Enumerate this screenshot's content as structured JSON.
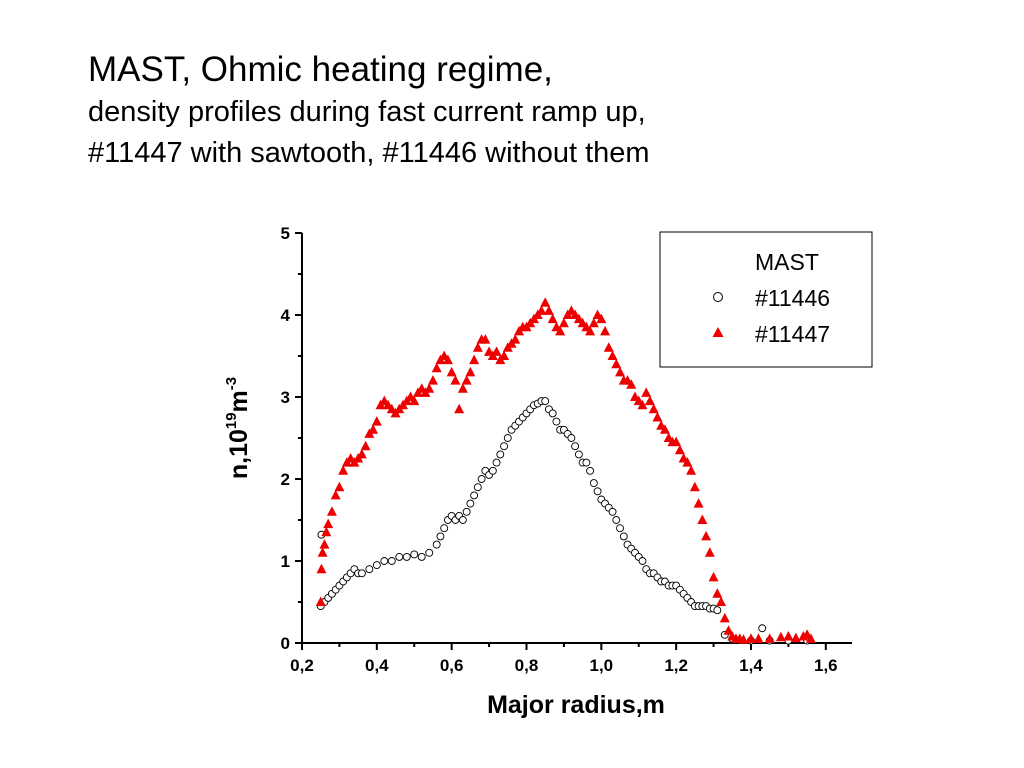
{
  "slide": {
    "title_line1": "MAST, Ohmic heating regime,",
    "title_line2": "density profiles during fast current ramp up,",
    "title_line3": "#11447 with sawtooth, #11446 without them"
  },
  "chart_data": {
    "type": "scatter",
    "xlabel": "Major radius,m",
    "ylabel": {
      "base": "n,10",
      "sup1": "19",
      "mid": "m",
      "sup2": "-3"
    },
    "xlim": [
      0.2,
      1.67
    ],
    "ylim": [
      0,
      5
    ],
    "xticks": [
      0.2,
      0.4,
      0.6,
      0.8,
      1.0,
      1.2,
      1.4,
      1.6
    ],
    "xtick_labels": [
      "0,2",
      "0,4",
      "0,6",
      "0,8",
      "1,0",
      "1,2",
      "1,4",
      "1,6"
    ],
    "yticks": [
      0,
      1,
      2,
      3,
      4,
      5
    ],
    "ytick_labels": [
      "0",
      "1",
      "2",
      "3",
      "4",
      "5"
    ],
    "grid": false,
    "legend": {
      "title": "MAST",
      "placement": "top-right"
    },
    "series": [
      {
        "name": "#11446",
        "marker": "open-circle",
        "color": "#000000",
        "points": [
          [
            0.25,
            0.45
          ],
          [
            0.252,
            1.32
          ],
          [
            0.26,
            0.5
          ],
          [
            0.27,
            0.55
          ],
          [
            0.28,
            0.6
          ],
          [
            0.29,
            0.65
          ],
          [
            0.3,
            0.7
          ],
          [
            0.31,
            0.75
          ],
          [
            0.32,
            0.8
          ],
          [
            0.33,
            0.85
          ],
          [
            0.34,
            0.9
          ],
          [
            0.35,
            0.85
          ],
          [
            0.36,
            0.85
          ],
          [
            0.38,
            0.9
          ],
          [
            0.4,
            0.95
          ],
          [
            0.42,
            1.0
          ],
          [
            0.44,
            1.0
          ],
          [
            0.46,
            1.05
          ],
          [
            0.48,
            1.05
          ],
          [
            0.5,
            1.08
          ],
          [
            0.52,
            1.05
          ],
          [
            0.54,
            1.1
          ],
          [
            0.56,
            1.2
          ],
          [
            0.57,
            1.3
          ],
          [
            0.58,
            1.4
          ],
          [
            0.59,
            1.5
          ],
          [
            0.6,
            1.55
          ],
          [
            0.61,
            1.5
          ],
          [
            0.62,
            1.55
          ],
          [
            0.63,
            1.5
          ],
          [
            0.64,
            1.6
          ],
          [
            0.65,
            1.7
          ],
          [
            0.66,
            1.8
          ],
          [
            0.67,
            1.9
          ],
          [
            0.68,
            2.0
          ],
          [
            0.69,
            2.1
          ],
          [
            0.7,
            2.05
          ],
          [
            0.71,
            2.1
          ],
          [
            0.72,
            2.2
          ],
          [
            0.73,
            2.3
          ],
          [
            0.74,
            2.4
          ],
          [
            0.75,
            2.5
          ],
          [
            0.76,
            2.6
          ],
          [
            0.77,
            2.65
          ],
          [
            0.78,
            2.7
          ],
          [
            0.79,
            2.75
          ],
          [
            0.8,
            2.8
          ],
          [
            0.81,
            2.85
          ],
          [
            0.82,
            2.9
          ],
          [
            0.83,
            2.92
          ],
          [
            0.84,
            2.95
          ],
          [
            0.85,
            2.95
          ],
          [
            0.86,
            2.85
          ],
          [
            0.87,
            2.8
          ],
          [
            0.88,
            2.7
          ],
          [
            0.89,
            2.6
          ],
          [
            0.9,
            2.6
          ],
          [
            0.91,
            2.55
          ],
          [
            0.92,
            2.5
          ],
          [
            0.93,
            2.4
          ],
          [
            0.94,
            2.3
          ],
          [
            0.95,
            2.2
          ],
          [
            0.96,
            2.2
          ],
          [
            0.97,
            2.1
          ],
          [
            0.98,
            1.95
          ],
          [
            0.99,
            1.85
          ],
          [
            1.0,
            1.75
          ],
          [
            1.01,
            1.7
          ],
          [
            1.02,
            1.65
          ],
          [
            1.03,
            1.6
          ],
          [
            1.04,
            1.5
          ],
          [
            1.05,
            1.4
          ],
          [
            1.06,
            1.3
          ],
          [
            1.07,
            1.2
          ],
          [
            1.08,
            1.15
          ],
          [
            1.09,
            1.1
          ],
          [
            1.1,
            1.05
          ],
          [
            1.11,
            1.0
          ],
          [
            1.12,
            0.9
          ],
          [
            1.13,
            0.85
          ],
          [
            1.14,
            0.85
          ],
          [
            1.15,
            0.8
          ],
          [
            1.16,
            0.75
          ],
          [
            1.17,
            0.75
          ],
          [
            1.18,
            0.7
          ],
          [
            1.19,
            0.7
          ],
          [
            1.2,
            0.7
          ],
          [
            1.21,
            0.65
          ],
          [
            1.22,
            0.6
          ],
          [
            1.23,
            0.55
          ],
          [
            1.24,
            0.5
          ],
          [
            1.25,
            0.45
          ],
          [
            1.26,
            0.45
          ],
          [
            1.27,
            0.45
          ],
          [
            1.28,
            0.45
          ],
          [
            1.29,
            0.42
          ],
          [
            1.3,
            0.42
          ],
          [
            1.31,
            0.4
          ],
          [
            1.33,
            0.1
          ],
          [
            1.35,
            0.05
          ],
          [
            1.4,
            0.03
          ],
          [
            1.43,
            0.18
          ],
          [
            1.45,
            0.03
          ],
          [
            1.5,
            0.03
          ],
          [
            1.55,
            0.03
          ]
        ]
      },
      {
        "name": "#11447",
        "marker": "filled-triangle",
        "color": "#ee0000",
        "points": [
          [
            0.25,
            0.5
          ],
          [
            0.252,
            0.9
          ],
          [
            0.255,
            1.1
          ],
          [
            0.26,
            1.2
          ],
          [
            0.265,
            1.35
          ],
          [
            0.27,
            1.45
          ],
          [
            0.28,
            1.6
          ],
          [
            0.29,
            1.8
          ],
          [
            0.3,
            1.9
          ],
          [
            0.31,
            2.1
          ],
          [
            0.32,
            2.2
          ],
          [
            0.33,
            2.25
          ],
          [
            0.34,
            2.2
          ],
          [
            0.35,
            2.25
          ],
          [
            0.36,
            2.3
          ],
          [
            0.37,
            2.4
          ],
          [
            0.38,
            2.55
          ],
          [
            0.39,
            2.6
          ],
          [
            0.4,
            2.7
          ],
          [
            0.41,
            2.9
          ],
          [
            0.42,
            2.95
          ],
          [
            0.43,
            2.9
          ],
          [
            0.44,
            2.85
          ],
          [
            0.45,
            2.8
          ],
          [
            0.46,
            2.85
          ],
          [
            0.47,
            2.9
          ],
          [
            0.48,
            2.95
          ],
          [
            0.49,
            3.0
          ],
          [
            0.5,
            2.95
          ],
          [
            0.51,
            3.05
          ],
          [
            0.52,
            3.1
          ],
          [
            0.53,
            3.05
          ],
          [
            0.54,
            3.1
          ],
          [
            0.55,
            3.2
          ],
          [
            0.56,
            3.35
          ],
          [
            0.57,
            3.45
          ],
          [
            0.58,
            3.5
          ],
          [
            0.59,
            3.45
          ],
          [
            0.6,
            3.3
          ],
          [
            0.61,
            3.2
          ],
          [
            0.62,
            2.85
          ],
          [
            0.63,
            3.1
          ],
          [
            0.64,
            3.2
          ],
          [
            0.65,
            3.3
          ],
          [
            0.66,
            3.45
          ],
          [
            0.67,
            3.6
          ],
          [
            0.68,
            3.7
          ],
          [
            0.69,
            3.7
          ],
          [
            0.7,
            3.55
          ],
          [
            0.71,
            3.5
          ],
          [
            0.72,
            3.55
          ],
          [
            0.73,
            3.45
          ],
          [
            0.74,
            3.5
          ],
          [
            0.75,
            3.6
          ],
          [
            0.76,
            3.65
          ],
          [
            0.77,
            3.7
          ],
          [
            0.78,
            3.8
          ],
          [
            0.79,
            3.85
          ],
          [
            0.8,
            3.85
          ],
          [
            0.81,
            3.9
          ],
          [
            0.82,
            3.95
          ],
          [
            0.83,
            4.0
          ],
          [
            0.84,
            4.05
          ],
          [
            0.85,
            4.15
          ],
          [
            0.86,
            4.05
          ],
          [
            0.87,
            3.95
          ],
          [
            0.88,
            3.85
          ],
          [
            0.89,
            3.8
          ],
          [
            0.9,
            3.9
          ],
          [
            0.91,
            4.0
          ],
          [
            0.92,
            4.05
          ],
          [
            0.93,
            4.0
          ],
          [
            0.94,
            3.95
          ],
          [
            0.95,
            3.9
          ],
          [
            0.96,
            3.85
          ],
          [
            0.97,
            3.8
          ],
          [
            0.98,
            3.9
          ],
          [
            0.99,
            4.0
          ],
          [
            1.0,
            3.95
          ],
          [
            1.01,
            3.8
          ],
          [
            1.02,
            3.6
          ],
          [
            1.03,
            3.5
          ],
          [
            1.04,
            3.4
          ],
          [
            1.05,
            3.3
          ],
          [
            1.06,
            3.2
          ],
          [
            1.07,
            3.2
          ],
          [
            1.08,
            3.15
          ],
          [
            1.09,
            3.0
          ],
          [
            1.1,
            2.95
          ],
          [
            1.11,
            2.9
          ],
          [
            1.12,
            3.05
          ],
          [
            1.13,
            2.95
          ],
          [
            1.14,
            2.85
          ],
          [
            1.15,
            2.75
          ],
          [
            1.16,
            2.65
          ],
          [
            1.17,
            2.6
          ],
          [
            1.18,
            2.5
          ],
          [
            1.19,
            2.45
          ],
          [
            1.2,
            2.45
          ],
          [
            1.21,
            2.35
          ],
          [
            1.22,
            2.25
          ],
          [
            1.23,
            2.2
          ],
          [
            1.24,
            2.1
          ],
          [
            1.25,
            1.9
          ],
          [
            1.26,
            1.7
          ],
          [
            1.27,
            1.5
          ],
          [
            1.28,
            1.3
          ],
          [
            1.29,
            1.1
          ],
          [
            1.3,
            0.8
          ],
          [
            1.31,
            0.6
          ],
          [
            1.32,
            0.5
          ],
          [
            1.33,
            0.3
          ],
          [
            1.34,
            0.15
          ],
          [
            1.35,
            0.08
          ],
          [
            1.36,
            0.05
          ],
          [
            1.37,
            0.05
          ],
          [
            1.38,
            0.04
          ],
          [
            1.4,
            0.05
          ],
          [
            1.42,
            0.05
          ],
          [
            1.45,
            0.05
          ],
          [
            1.48,
            0.07
          ],
          [
            1.5,
            0.08
          ],
          [
            1.52,
            0.06
          ],
          [
            1.54,
            0.08
          ],
          [
            1.55,
            0.1
          ],
          [
            1.56,
            0.05
          ]
        ]
      }
    ]
  }
}
